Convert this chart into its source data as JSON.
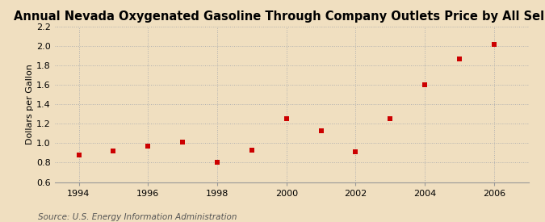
{
  "title": "Annual Nevada Oxygenated Gasoline Through Company Outlets Price by All Sellers",
  "ylabel": "Dollars per Gallon",
  "source": "Source: U.S. Energy Information Administration",
  "fig_background_color": "#f0dfc0",
  "plot_background_color": "#f5ead8",
  "years": [
    1994,
    1995,
    1996,
    1997,
    1998,
    1999,
    2000,
    2001,
    2002,
    2003,
    2004,
    2005,
    2006
  ],
  "values": [
    0.88,
    0.92,
    0.97,
    1.01,
    0.8,
    0.93,
    1.25,
    1.13,
    0.91,
    1.25,
    1.6,
    1.87,
    2.02
  ],
  "marker_color": "#cc0000",
  "marker": "s",
  "marker_size": 5,
  "xlim": [
    1993.3,
    2007.0
  ],
  "ylim": [
    0.6,
    2.2
  ],
  "yticks": [
    0.6,
    0.8,
    1.0,
    1.2,
    1.4,
    1.6,
    1.8,
    2.0,
    2.2
  ],
  "xticks": [
    1994,
    1996,
    1998,
    2000,
    2002,
    2004,
    2006
  ],
  "grid_color": "#b0b0b0",
  "title_fontsize": 10.5,
  "label_fontsize": 8,
  "tick_fontsize": 8,
  "source_fontsize": 7.5
}
